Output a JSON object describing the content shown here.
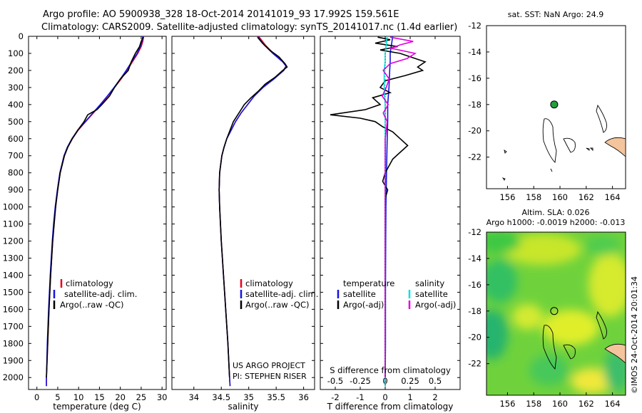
{
  "header": {
    "line1": "Argo profile: AO 5900938_328 18-Oct-2014 20141019_93 17.992S 159.561E",
    "line2": "Climatology: CARS2009. Satellite-adjusted climatology: synTS_20141017.nc (1.4d earlier)"
  },
  "colors": {
    "climatology": "#e8001c",
    "satellite_adj": "#1414e0",
    "argo": "#000000",
    "satellite_s": "#00e0e0",
    "argo_s": "#e000e0",
    "island_fill": "#f4c49c",
    "marker": "#22a040"
  },
  "chart_data": [
    {
      "id": "temperature",
      "type": "line",
      "xlabel": "temperature (deg C)",
      "xticks": [
        "0",
        "5",
        "10",
        "15",
        "20",
        "25",
        "30"
      ],
      "xlim": [
        -2,
        31
      ],
      "ylim": [
        0,
        2070
      ],
      "yticks": [
        "0",
        "100",
        "200",
        "300",
        "400",
        "500",
        "600",
        "700",
        "800",
        "900",
        "1000",
        "1100",
        "1200",
        "1300",
        "1400",
        "1500",
        "1600",
        "1700",
        "1800",
        "1900",
        "2000"
      ],
      "legend": [
        "climatology",
        "satellite-adj. clim.",
        "Argo(..raw -QC)"
      ],
      "series": [
        {
          "name": "climatology",
          "depth": [
            0,
            30,
            60,
            100,
            150,
            200,
            250,
            300,
            350,
            400,
            450,
            500,
            550,
            600,
            650,
            700,
            800,
            900,
            1000,
            1100,
            1200,
            1400,
            1600,
            1800,
            2000,
            2050
          ],
          "values": [
            25.6,
            25.4,
            25.0,
            24.2,
            22.9,
            21.6,
            20.2,
            18.6,
            17.0,
            15.3,
            13.5,
            11.7,
            9.9,
            8.5,
            7.4,
            6.6,
            5.6,
            5.0,
            4.5,
            4.1,
            3.8,
            3.3,
            2.9,
            2.6,
            2.3,
            2.3
          ]
        },
        {
          "name": "satellite-adj. clim.",
          "depth": [
            0,
            30,
            60,
            100,
            150,
            200,
            250,
            300,
            350,
            400,
            450,
            500,
            550,
            600,
            650,
            700,
            800,
            900,
            1000,
            1100,
            1200,
            1400,
            1600,
            1800,
            2000,
            2050
          ],
          "values": [
            25.4,
            25.2,
            24.8,
            24.0,
            22.7,
            21.4,
            20.0,
            18.5,
            16.9,
            15.2,
            13.4,
            11.6,
            9.8,
            8.4,
            7.3,
            6.5,
            5.5,
            4.9,
            4.4,
            4.0,
            3.7,
            3.2,
            2.8,
            2.5,
            2.3,
            2.3
          ]
        },
        {
          "name": "Argo(..raw -QC)",
          "depth": [
            5,
            30,
            60,
            100,
            150,
            200,
            250,
            300,
            350,
            400,
            430,
            460,
            500,
            550,
            600,
            650,
            700,
            800,
            900,
            1000,
            1200,
            1400,
            1600,
            1800,
            2000
          ],
          "values": [
            25.5,
            25.0,
            24.6,
            23.6,
            22.6,
            21.9,
            20.0,
            18.6,
            17.4,
            15.6,
            14.4,
            12.2,
            11.3,
            9.8,
            8.5,
            7.4,
            6.6,
            5.6,
            5.0,
            4.5,
            3.8,
            3.3,
            2.9,
            2.6,
            2.3
          ]
        }
      ]
    },
    {
      "id": "salinity",
      "type": "line",
      "xlabel": "salinity",
      "xticks": [
        "34",
        "34.5",
        "35",
        "35.5",
        "36"
      ],
      "xlim": [
        33.6,
        36.2
      ],
      "legend": [
        "climatology",
        "satellite-adj. clim.",
        "Argo(..raw -QC)"
      ],
      "credit": [
        "US ARGO PROJECT",
        "PI: STEPHEN RISER"
      ],
      "series": [
        {
          "name": "climatology",
          "depth": [
            0,
            50,
            100,
            150,
            175,
            200,
            250,
            300,
            350,
            400,
            450,
            500,
            550,
            600,
            650,
            700,
            800,
            900,
            1000,
            1200,
            1400,
            1600,
            1800,
            2000,
            2050
          ],
          "values": [
            35.18,
            35.3,
            35.45,
            35.62,
            35.68,
            35.63,
            35.45,
            35.25,
            35.1,
            34.98,
            34.86,
            34.76,
            34.68,
            34.6,
            34.55,
            34.51,
            34.47,
            34.46,
            34.47,
            34.5,
            34.54,
            34.58,
            34.62,
            34.65,
            34.66
          ]
        },
        {
          "name": "satellite-adj. clim.",
          "depth": [
            0,
            50,
            100,
            150,
            175,
            200,
            250,
            300,
            350,
            400,
            450,
            500,
            550,
            600,
            650,
            700,
            800,
            900,
            1000,
            1200,
            1400,
            1600,
            1800,
            2000,
            2050
          ],
          "values": [
            35.16,
            35.28,
            35.44,
            35.62,
            35.68,
            35.64,
            35.46,
            35.26,
            35.1,
            34.98,
            34.86,
            34.76,
            34.68,
            34.6,
            34.55,
            34.51,
            34.47,
            34.46,
            34.47,
            34.5,
            34.54,
            34.58,
            34.62,
            34.65,
            34.66
          ]
        },
        {
          "name": "Argo(..raw -QC)",
          "depth": [
            5,
            40,
            80,
            120,
            160,
            180,
            200,
            240,
            280,
            320,
            360,
            400,
            440,
            470,
            500,
            550,
            600,
            650,
            700,
            800,
            900,
            1000,
            1200,
            1400,
            1600,
            1800,
            2000
          ],
          "values": [
            35.16,
            35.25,
            35.38,
            35.55,
            35.66,
            35.7,
            35.62,
            35.48,
            35.3,
            35.18,
            35.04,
            34.92,
            34.84,
            34.78,
            34.72,
            34.66,
            34.6,
            34.55,
            34.51,
            34.47,
            34.46,
            34.47,
            34.5,
            34.54,
            34.58,
            34.62,
            34.65
          ]
        }
      ]
    },
    {
      "id": "difference",
      "type": "line",
      "xlabel": "T difference from climatology",
      "xticks": [
        "-2",
        "-1",
        "0",
        "1",
        "2"
      ],
      "xlim": [
        -2.6,
        3.0
      ],
      "top_xlabel": "S difference from climatology",
      "top_xticks": [
        "-0.5",
        "-0.25",
        "0",
        "0.25",
        "0.5"
      ],
      "legend_temperature": [
        "temperature",
        "satellite",
        "Argo(-adj)"
      ],
      "legend_salinity": [
        "salinity",
        "satellite",
        "Argo(-adj)"
      ],
      "series": [
        {
          "name": "temperature satellite",
          "depth": [
            0,
            50,
            100,
            150,
            200,
            300,
            400,
            500,
            600,
            800,
            1000,
            1200,
            1500,
            1800,
            2050
          ],
          "values": [
            0.3,
            0.25,
            0.2,
            0.2,
            0.18,
            0.15,
            0.1,
            0.1,
            0.08,
            0.05,
            0.03,
            0.02,
            0.01,
            0.01,
            0.0
          ]
        },
        {
          "name": "temperature Argo(-adj)",
          "depth": [
            5,
            20,
            40,
            60,
            80,
            100,
            120,
            150,
            180,
            200,
            230,
            260,
            300,
            330,
            360,
            400,
            430,
            460,
            480,
            500,
            530,
            560,
            600,
            640,
            680,
            720,
            800,
            850,
            900,
            950,
            1000,
            1200,
            1500,
            1800,
            2000
          ],
          "values": [
            -0.3,
            0.2,
            -0.4,
            0.5,
            -0.2,
            0.6,
            1.0,
            1.6,
            1.3,
            1.5,
            0.8,
            0.0,
            -0.2,
            0.2,
            -0.5,
            -0.2,
            -0.8,
            -2.2,
            -1.0,
            -0.4,
            -0.1,
            0.3,
            0.6,
            0.9,
            0.6,
            0.3,
            0.0,
            -0.1,
            0.1,
            0.0,
            0.0,
            0.0,
            0.0,
            0.0,
            0.0
          ]
        },
        {
          "name": "salinity satellite",
          "depth": [
            0,
            50,
            100,
            150,
            200,
            300,
            400,
            500,
            600,
            800,
            1000,
            1500,
            2050
          ],
          "values": [
            0.02,
            0.01,
            0.0,
            0.0,
            -0.01,
            -0.01,
            0.0,
            0.0,
            0.0,
            0.0,
            0.0,
            0.0,
            0.0
          ]
        },
        {
          "name": "salinity Argo(-adj)",
          "depth": [
            5,
            30,
            50,
            70,
            100,
            130,
            160,
            200,
            250,
            300,
            350,
            400,
            450,
            500,
            550,
            600,
            700,
            800,
            1000,
            1200,
            1500,
            1800,
            2000
          ],
          "values": [
            0.05,
            0.28,
            0.15,
            0.06,
            0.3,
            0.22,
            0.05,
            -0.02,
            0.04,
            0.01,
            -0.03,
            0.03,
            -0.02,
            0.02,
            0.01,
            0.0,
            0.0,
            0.0,
            0.0,
            0.0,
            0.0,
            0.0,
            0.0
          ]
        }
      ]
    },
    {
      "id": "sst_map",
      "type": "map",
      "title": "sat. SST: NaN Argo: 24.9",
      "xticks": [
        "156",
        "158",
        "160",
        "162",
        "164"
      ],
      "yticks": [
        "-12",
        "-14",
        "-16",
        "-18",
        "-20",
        "-22"
      ],
      "marker": {
        "lon": 159.561,
        "lat": -17.992
      }
    },
    {
      "id": "sla_map",
      "type": "heatmap",
      "title_line1": "Altim. SLA: 0.026",
      "title_line2": "Argo h1000: -0.0019 h2000: -0.013",
      "xticks": [
        "156",
        "158",
        "160",
        "162",
        "164"
      ],
      "yticks": [
        "-12",
        "-14",
        "-16",
        "-18",
        "-20",
        "-22"
      ],
      "marker": {
        "lon": 159.561,
        "lat": -17.992
      }
    }
  ],
  "side_stamp": "©IMOS 24-Oct-2014 20:01:34"
}
